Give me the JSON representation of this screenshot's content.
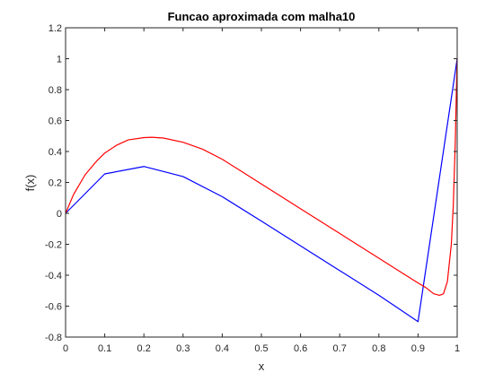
{
  "chart_data": {
    "type": "line",
    "title": "Funcao aproximada com malha10",
    "xlabel": "x",
    "ylabel": "f(x)",
    "xlim": [
      0,
      1
    ],
    "ylim": [
      -0.8,
      1.2
    ],
    "xticks": [
      "0",
      "0.1",
      "0.2",
      "0.3",
      "0.4",
      "0.5",
      "0.6",
      "0.7",
      "0.8",
      "0.9",
      "1"
    ],
    "yticks": [
      "-0.8",
      "-0.6",
      "-0.4",
      "-0.2",
      "0",
      "0.2",
      "0.4",
      "0.6",
      "0.8",
      "1",
      "1.2"
    ],
    "grid": false,
    "legend": "none",
    "series": [
      {
        "color": "#0000ff",
        "x": [
          0,
          0.1,
          0.2,
          0.3,
          0.4,
          0.5,
          0.6,
          0.7,
          0.8,
          0.9,
          1.0
        ],
        "y": [
          0,
          0.255,
          0.303,
          0.238,
          0.108,
          -0.05,
          -0.21,
          -0.37,
          -0.53,
          -0.7,
          1.0
        ]
      },
      {
        "color": "#ff0000",
        "x": [
          0,
          0.02,
          0.05,
          0.08,
          0.1,
          0.13,
          0.16,
          0.2,
          0.22,
          0.25,
          0.3,
          0.35,
          0.4,
          0.45,
          0.5,
          0.55,
          0.6,
          0.65,
          0.7,
          0.75,
          0.8,
          0.85,
          0.9,
          0.92,
          0.94,
          0.955,
          0.965,
          0.975,
          0.985,
          0.99,
          0.995,
          0.998,
          1.0
        ],
        "y": [
          0,
          0.12,
          0.25,
          0.34,
          0.39,
          0.44,
          0.475,
          0.49,
          0.492,
          0.487,
          0.46,
          0.415,
          0.35,
          0.27,
          0.19,
          0.11,
          0.03,
          -0.05,
          -0.13,
          -0.21,
          -0.29,
          -0.37,
          -0.45,
          -0.48,
          -0.52,
          -0.53,
          -0.52,
          -0.44,
          -0.2,
          0.05,
          0.45,
          0.8,
          1.0
        ]
      }
    ]
  }
}
